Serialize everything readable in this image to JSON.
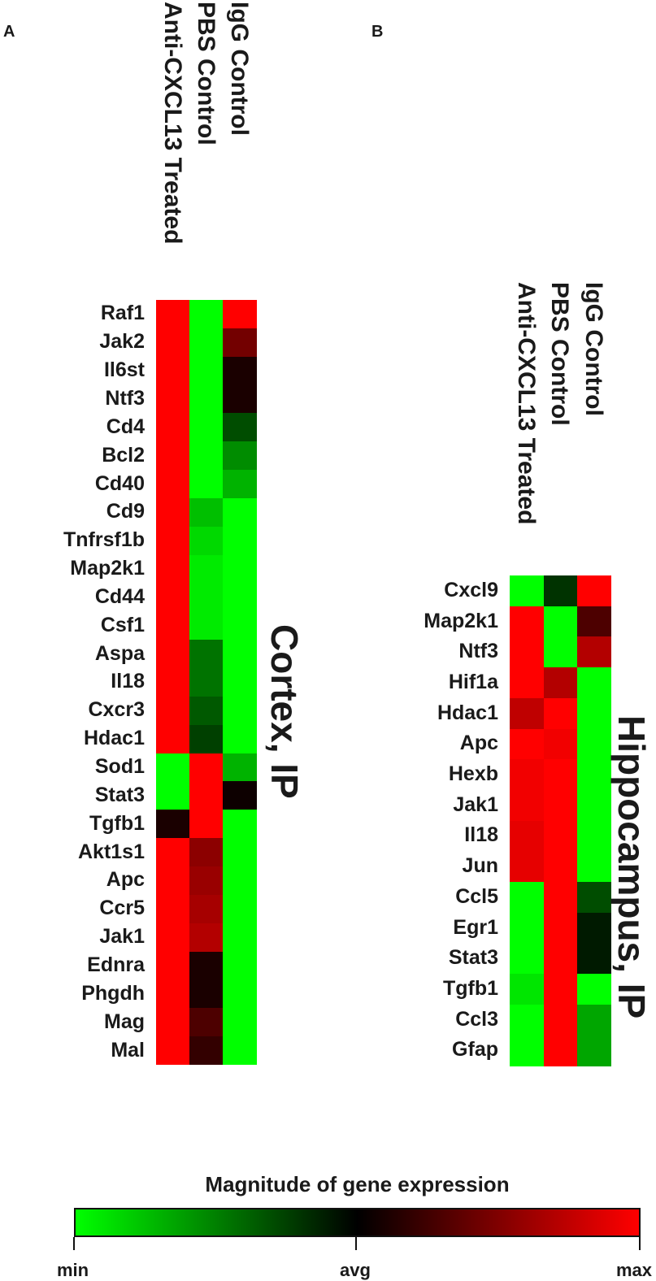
{
  "chart_data": [
    {
      "type": "heatmap",
      "panel": "A",
      "region_label": "Cortex, IP",
      "columns": [
        "Anti-CXCL13 Treated",
        "PBS Control",
        "IgG Control"
      ],
      "rows": [
        "Raf1",
        "Jak2",
        "Il6st",
        "Ntf3",
        "Cd4",
        "Bcl2",
        "Cd40",
        "Cd9",
        "Tnfrsf1b",
        "Map2k1",
        "Cd44",
        "Csf1",
        "Aspa",
        "Il18",
        "Cxcr3",
        "Hdac1",
        "Sod1",
        "Stat3",
        "Tgfb1",
        "Akt1s1",
        "Apc",
        "Ccr5",
        "Jak1",
        "Ednra",
        "Phgdh",
        "Mag",
        "Mal"
      ],
      "values": [
        [
          1.0,
          -1.0,
          1.0
        ],
        [
          1.0,
          -1.0,
          0.45
        ],
        [
          1.0,
          -1.0,
          0.1
        ],
        [
          1.0,
          -1.0,
          0.1
        ],
        [
          1.0,
          -1.0,
          -0.3
        ],
        [
          1.0,
          -1.0,
          -0.55
        ],
        [
          1.0,
          -1.0,
          -0.7
        ],
        [
          1.0,
          -0.75,
          -1.0
        ],
        [
          1.0,
          -0.85,
          -1.0
        ],
        [
          1.0,
          -0.92,
          -1.0
        ],
        [
          1.0,
          -0.92,
          -1.0
        ],
        [
          1.0,
          -0.92,
          -1.0
        ],
        [
          1.0,
          -0.45,
          -1.0
        ],
        [
          1.0,
          -0.45,
          -1.0
        ],
        [
          1.0,
          -0.35,
          -1.0
        ],
        [
          1.0,
          -0.25,
          -1.0
        ],
        [
          -1.0,
          1.0,
          -0.7
        ],
        [
          -1.0,
          1.0,
          0.05
        ],
        [
          0.1,
          1.0,
          -1.0
        ],
        [
          1.0,
          0.55,
          -1.0
        ],
        [
          1.0,
          0.6,
          -1.0
        ],
        [
          1.0,
          0.65,
          -1.0
        ],
        [
          1.0,
          0.7,
          -1.0
        ],
        [
          1.0,
          0.1,
          -1.0
        ],
        [
          1.0,
          0.1,
          -1.0
        ],
        [
          1.0,
          0.3,
          -1.0
        ],
        [
          1.0,
          0.2,
          -1.0
        ]
      ]
    },
    {
      "type": "heatmap",
      "panel": "B",
      "region_label": "Hippocampus, IP",
      "columns": [
        "Anti-CXCL13 Treated",
        "PBS Control",
        "IgG Control"
      ],
      "rows": [
        "Cxcl9",
        "Map2k1",
        "Ntf3",
        "Hif1a",
        "Hdac1",
        "Apc",
        "Hexb",
        "Jak1",
        "Il18",
        "Jun",
        "Ccl5",
        "Egr1",
        "Stat3",
        "Tgfb1",
        "Ccl3",
        "Gfap"
      ],
      "values": [
        [
          -1.0,
          -0.2,
          1.0
        ],
        [
          1.0,
          -1.0,
          0.3
        ],
        [
          1.0,
          -1.0,
          0.7
        ],
        [
          1.0,
          0.7,
          -1.0
        ],
        [
          0.75,
          1.0,
          -1.0
        ],
        [
          1.0,
          0.95,
          -1.0
        ],
        [
          0.95,
          1.0,
          -1.0
        ],
        [
          0.95,
          1.0,
          -1.0
        ],
        [
          0.9,
          1.0,
          -1.0
        ],
        [
          0.9,
          1.0,
          -1.0
        ],
        [
          -1.0,
          1.0,
          -0.3
        ],
        [
          -1.0,
          1.0,
          -0.1
        ],
        [
          -1.0,
          1.0,
          -0.1
        ],
        [
          -0.9,
          1.0,
          -1.0
        ],
        [
          -1.0,
          1.0,
          -0.65
        ],
        [
          -1.0,
          1.0,
          -0.65
        ]
      ]
    }
  ],
  "legend": {
    "title": "Magnitude of gene expression",
    "min_label": "min",
    "avg_label": "avg",
    "max_label": "max",
    "colors": {
      "min": "#00ff00",
      "avg": "#000000",
      "max": "#ff0000"
    }
  }
}
